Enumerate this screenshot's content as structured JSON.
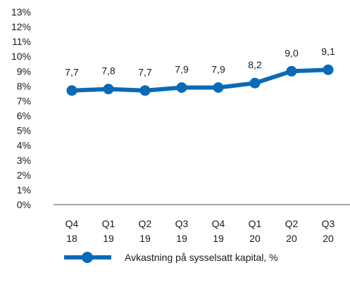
{
  "chart_data": {
    "type": "line",
    "categories": [
      [
        "Q4",
        "18"
      ],
      [
        "Q1",
        "19"
      ],
      [
        "Q2",
        "19"
      ],
      [
        "Q3",
        "19"
      ],
      [
        "Q4",
        "19"
      ],
      [
        "Q1",
        "20"
      ],
      [
        "Q2",
        "20"
      ],
      [
        "Q3",
        "20"
      ]
    ],
    "series": [
      {
        "name": "Avkastning på sysselsatt kapital, %",
        "values": [
          7.7,
          7.8,
          7.7,
          7.9,
          7.9,
          8.2,
          9.0,
          9.1
        ],
        "labels": [
          "7,7",
          "7,8",
          "7,7",
          "7,9",
          "7,9",
          "8,2",
          "9,0",
          "9,1"
        ],
        "color": "#0a6ab6"
      }
    ],
    "y_ticks": [
      "0%",
      "1%",
      "2%",
      "3%",
      "4%",
      "5%",
      "6%",
      "7%",
      "8%",
      "9%",
      "10%",
      "11%",
      "12%",
      "13%"
    ],
    "ylim": [
      0,
      13
    ],
    "legend_position": "bottom-center",
    "grid": false,
    "axis_color": "#888888"
  }
}
